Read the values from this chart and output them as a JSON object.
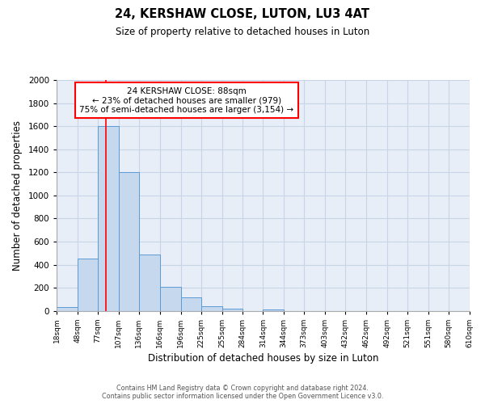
{
  "title": "24, KERSHAW CLOSE, LUTON, LU3 4AT",
  "subtitle": "Size of property relative to detached houses in Luton",
  "xlabel": "Distribution of detached houses by size in Luton",
  "ylabel": "Number of detached properties",
  "bin_labels": [
    "18sqm",
    "48sqm",
    "77sqm",
    "107sqm",
    "136sqm",
    "166sqm",
    "196sqm",
    "225sqm",
    "255sqm",
    "284sqm",
    "314sqm",
    "344sqm",
    "373sqm",
    "403sqm",
    "432sqm",
    "462sqm",
    "492sqm",
    "521sqm",
    "551sqm",
    "580sqm",
    "610sqm"
  ],
  "bin_edges": [
    18,
    48,
    77,
    107,
    136,
    166,
    196,
    225,
    255,
    284,
    314,
    344,
    373,
    403,
    432,
    462,
    492,
    521,
    551,
    580,
    610
  ],
  "bar_heights": [
    30,
    455,
    1600,
    1200,
    490,
    210,
    120,
    40,
    20,
    0,
    10,
    0,
    0,
    0,
    0,
    0,
    0,
    0,
    0,
    0
  ],
  "bar_color": "#c5d8ee",
  "bar_edge_color": "#5b9bd5",
  "ax_facecolor": "#e8eef7",
  "ylim": [
    0,
    2000
  ],
  "yticks": [
    0,
    200,
    400,
    600,
    800,
    1000,
    1200,
    1400,
    1600,
    1800,
    2000
  ],
  "property_value": 88,
  "property_label": "24 KERSHAW CLOSE: 88sqm",
  "annotation_line1": "← 23% of detached houses are smaller (979)",
  "annotation_line2": "75% of semi-detached houses are larger (3,154) →",
  "red_line_x": 88,
  "footer_line1": "Contains HM Land Registry data © Crown copyright and database right 2024.",
  "footer_line2": "Contains public sector information licensed under the Open Government Licence v3.0.",
  "background_color": "#ffffff",
  "grid_color": "#c8d4e8"
}
